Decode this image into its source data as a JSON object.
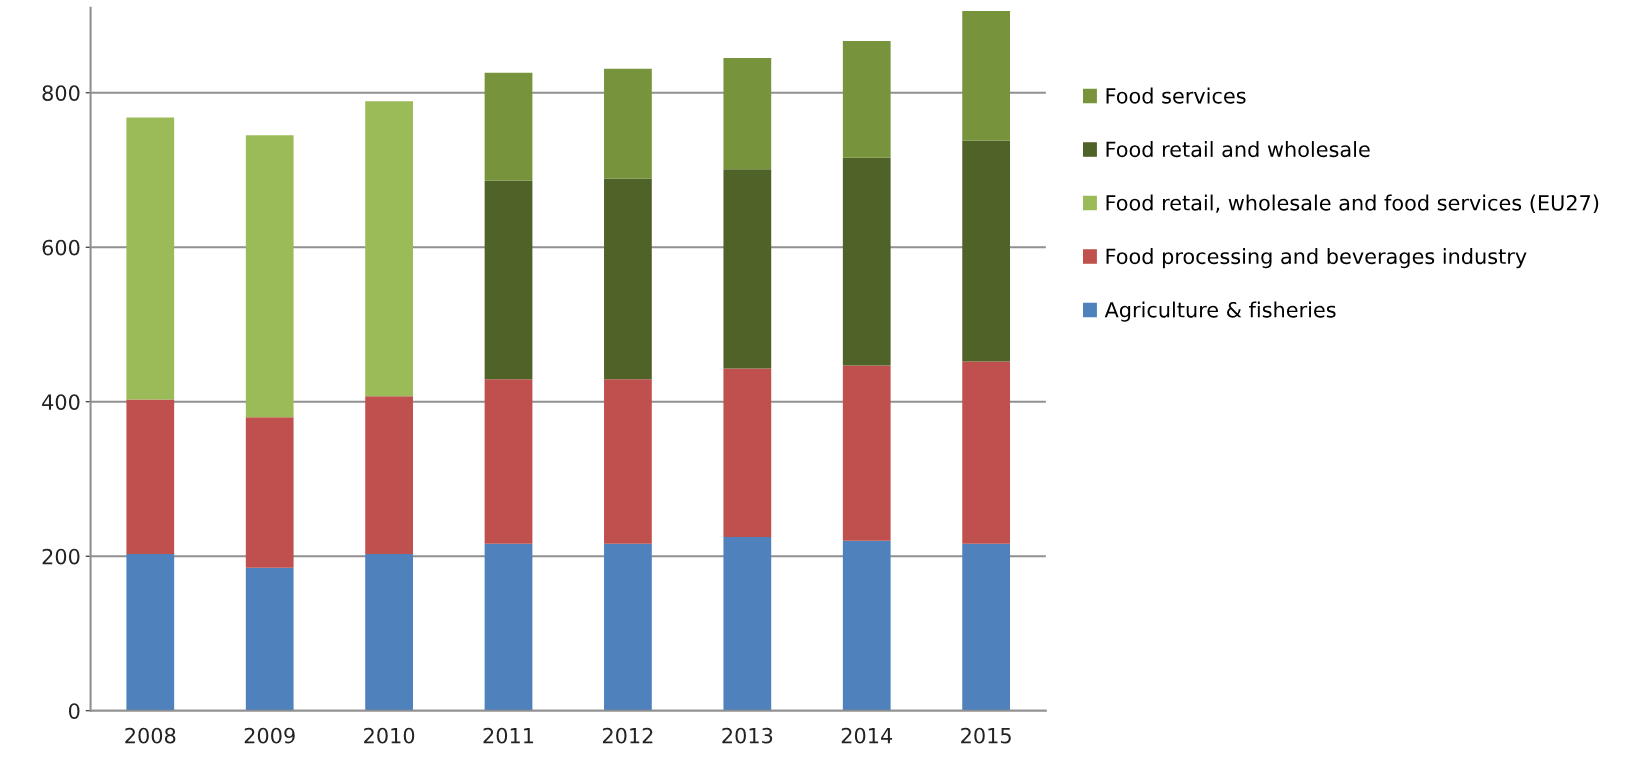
{
  "chart_data": {
    "type": "bar",
    "stacked": true,
    "categories": [
      "2008",
      "2009",
      "2010",
      "2011",
      "2012",
      "2013",
      "2014",
      "2015"
    ],
    "series": [
      {
        "name": "Agriculture & fisheries",
        "color": "#4f81bd",
        "values": [
          203,
          185,
          203,
          216,
          216,
          225,
          220,
          216
        ]
      },
      {
        "name": "Food processing and beverages industry",
        "color": "#c0504d",
        "values": [
          200,
          195,
          204,
          213,
          213,
          218,
          227,
          236
        ]
      },
      {
        "name": "Food retail, wholesale and food services (EU27)",
        "color": "#9bbb59",
        "values": [
          365,
          365,
          382,
          null,
          null,
          null,
          null,
          null
        ]
      },
      {
        "name": "Food retail and wholesale",
        "color": "#4f6228",
        "values": [
          null,
          null,
          null,
          257,
          260,
          258,
          269,
          286
        ]
      },
      {
        "name": "Food services",
        "color": "#77933c",
        "values": [
          null,
          null,
          null,
          140,
          142,
          144,
          151,
          168
        ]
      }
    ],
    "ylim": [
      0,
      910
    ],
    "yticks": [
      0,
      200,
      400,
      600,
      800
    ],
    "grid": "y",
    "legend": "right"
  }
}
